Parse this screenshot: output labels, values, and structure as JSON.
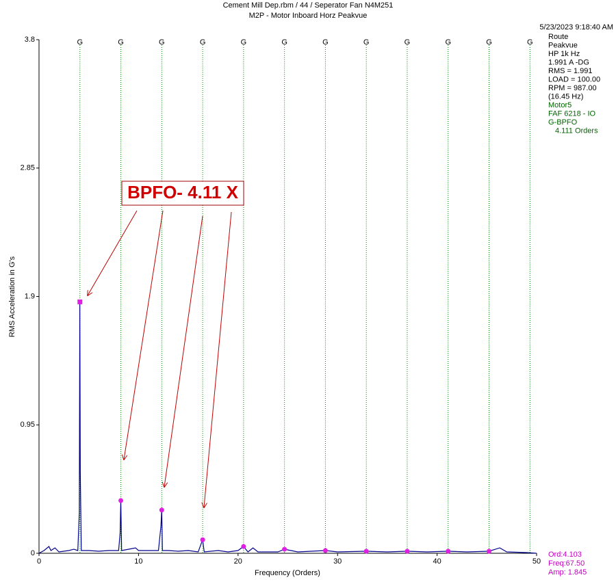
{
  "chart_data": {
    "type": "line",
    "title": "Cement Mill Dep.rbm / 44 / Seperator Fan N4M251",
    "subtitle": "M2P - Motor Inboard Horz Peakvue",
    "timestamp": "5/23/2023 9:18:40 AM",
    "x_label": "Frequency (Orders)",
    "y_label": "RMS Acceleration in G's",
    "xlim": [
      0,
      50
    ],
    "xticks": [
      0,
      10,
      20,
      30,
      40,
      50
    ],
    "ylim": [
      0,
      3.8
    ],
    "yticks": [
      0,
      0.95,
      1.9,
      2.85,
      3.8
    ],
    "info_lines": [
      "Route",
      "Peakvue",
      "HP 1k Hz",
      "1.991 A -DG",
      "RMS = 1.991",
      "LOAD = 100.00",
      "RPM = 987.00",
      "(16.45 Hz)"
    ],
    "fault_lines": [
      "Motor5",
      "FAF 6218 - IO",
      "G-BPFO",
      "4.111 Orders"
    ],
    "annotation": "BPFO- 4.11 X",
    "cursor_readout": [
      "Ord:4.103",
      "Freq:67.50",
      "Amp: 1.845"
    ],
    "fault_marker_label": "G",
    "fault_marker_color": "#008000",
    "fault_frequencies": [
      4.111,
      8.222,
      12.333,
      16.444,
      20.555,
      24.666,
      28.777,
      32.888,
      36.999,
      41.11,
      45.221,
      49.332
    ],
    "series": [
      {
        "name": "Spectrum",
        "color": "#00008b",
        "x": [
          0,
          0.5,
          1,
          1.2,
          1.6,
          2,
          3,
          3.5,
          3.9,
          4.05,
          4.1,
          4.15,
          4.25,
          5,
          6,
          7,
          8,
          8.15,
          8.22,
          8.3,
          9,
          9.7,
          10,
          11,
          12,
          12.25,
          12.33,
          12.4,
          13,
          14,
          15,
          16,
          16.44,
          16.6,
          18,
          19,
          20,
          20.55,
          21,
          21.5,
          22,
          24,
          24.67,
          26,
          28.78,
          30,
          32.89,
          35,
          37,
          39,
          41.11,
          43,
          45.22,
          46.3,
          47,
          49,
          50
        ],
        "values": [
          0,
          0.02,
          0.05,
          0.02,
          0.04,
          0.01,
          0.02,
          0.03,
          0.02,
          0.3,
          1.85,
          0.6,
          0.02,
          0.02,
          0.015,
          0.02,
          0.02,
          0.15,
          0.39,
          0.02,
          0.03,
          0.04,
          0.02,
          0.02,
          0.02,
          0.2,
          0.32,
          0.02,
          0.02,
          0.015,
          0.02,
          0.01,
          0.1,
          0.01,
          0.02,
          0.01,
          0.02,
          0.05,
          0.01,
          0.04,
          0.01,
          0.01,
          0.03,
          0.01,
          0.02,
          0.01,
          0.015,
          0.01,
          0.015,
          0.01,
          0.015,
          0.01,
          0.015,
          0.04,
          0.01,
          0.005,
          0
        ]
      },
      {
        "name": "Harmonic markers",
        "color": "#e020e0",
        "x": [
          4.111,
          8.222,
          12.333,
          16.444,
          20.555,
          24.666,
          28.777,
          32.888,
          36.999,
          41.11,
          45.221
        ],
        "values": [
          1.86,
          0.39,
          0.32,
          0.1,
          0.05,
          0.03,
          0.02,
          0.015,
          0.015,
          0.015,
          0.015
        ]
      }
    ]
  }
}
